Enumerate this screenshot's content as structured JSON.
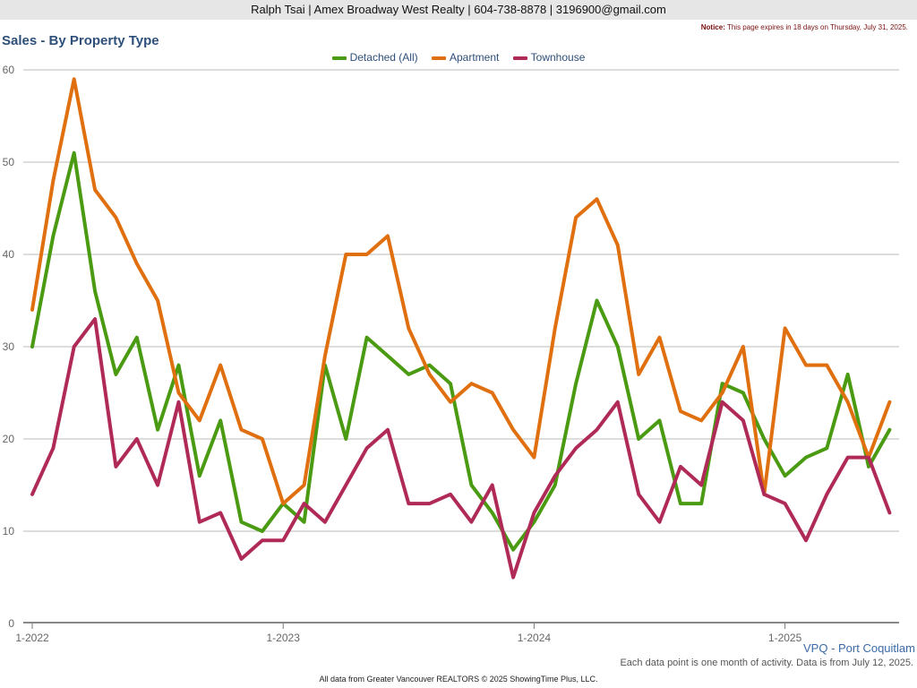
{
  "header": {
    "agent_line": "Ralph Tsai | Amex Broadway West Realty | 604-738-8878 | 3196900@gmail.com"
  },
  "notice": {
    "label": "Notice:",
    "text": "This page expires in 18 days on Thursday, July 31, 2025."
  },
  "region": "VPQ - Port Coquitlam",
  "note": "Each data point is one month of activity. Data is from July 12, 2025.",
  "footer": "All data from Greater Vancouver REALTORS © 2025 ShowingTime Plus, LLC.",
  "colors": {
    "detached": "#4a9a12",
    "apartment": "#e0700f",
    "townhouse": "#b02a57",
    "grid": "#bbbbbb",
    "title": "#2e4f7a"
  },
  "chart_data": {
    "type": "line",
    "title": "Sales - By Property Type",
    "xlabel": "",
    "ylabel": "",
    "ylim": [
      0,
      60
    ],
    "yticks": [
      0,
      10,
      20,
      30,
      40,
      50,
      60
    ],
    "x_tick_labels": [
      {
        "index": 0,
        "label": "1-2022"
      },
      {
        "index": 12,
        "label": "1-2023"
      },
      {
        "index": 24,
        "label": "1-2024"
      },
      {
        "index": 36,
        "label": "1-2025"
      }
    ],
    "grid": true,
    "legend": "top-center",
    "x": [
      "1-2022",
      "2-2022",
      "3-2022",
      "4-2022",
      "5-2022",
      "6-2022",
      "7-2022",
      "8-2022",
      "9-2022",
      "10-2022",
      "11-2022",
      "12-2022",
      "1-2023",
      "2-2023",
      "3-2023",
      "4-2023",
      "5-2023",
      "6-2023",
      "7-2023",
      "8-2023",
      "9-2023",
      "10-2023",
      "11-2023",
      "12-2023",
      "1-2024",
      "2-2024",
      "3-2024",
      "4-2024",
      "5-2024",
      "6-2024",
      "7-2024",
      "8-2024",
      "9-2024",
      "10-2024",
      "11-2024",
      "12-2024",
      "1-2025",
      "2-2025",
      "3-2025",
      "4-2025",
      "5-2025",
      "6-2025"
    ],
    "series": [
      {
        "name": "Detached (All)",
        "color": "#4a9a12",
        "values": [
          30,
          42,
          51,
          36,
          27,
          31,
          21,
          28,
          16,
          22,
          11,
          10,
          13,
          11,
          28,
          20,
          31,
          29,
          27,
          28,
          26,
          15,
          12,
          8,
          11,
          15,
          26,
          35,
          30,
          20,
          22,
          13,
          13,
          26,
          25,
          20,
          16,
          18,
          19,
          27,
          17,
          21
        ]
      },
      {
        "name": "Apartment",
        "color": "#e0700f",
        "values": [
          34,
          48,
          59,
          47,
          44,
          39,
          35,
          25,
          22,
          28,
          21,
          20,
          13,
          15,
          29,
          40,
          40,
          42,
          32,
          27,
          24,
          26,
          25,
          21,
          18,
          32,
          44,
          46,
          41,
          27,
          31,
          23,
          22,
          25,
          30,
          14,
          32,
          28,
          28,
          24,
          18,
          24
        ]
      },
      {
        "name": "Townhouse",
        "color": "#b02a57",
        "values": [
          14,
          19,
          30,
          33,
          17,
          20,
          15,
          24,
          11,
          12,
          7,
          9,
          9,
          13,
          11,
          15,
          19,
          21,
          13,
          13,
          14,
          11,
          15,
          5,
          12,
          16,
          19,
          21,
          24,
          14,
          11,
          17,
          15,
          24,
          22,
          14,
          13,
          9,
          14,
          18,
          18,
          12
        ]
      }
    ]
  }
}
